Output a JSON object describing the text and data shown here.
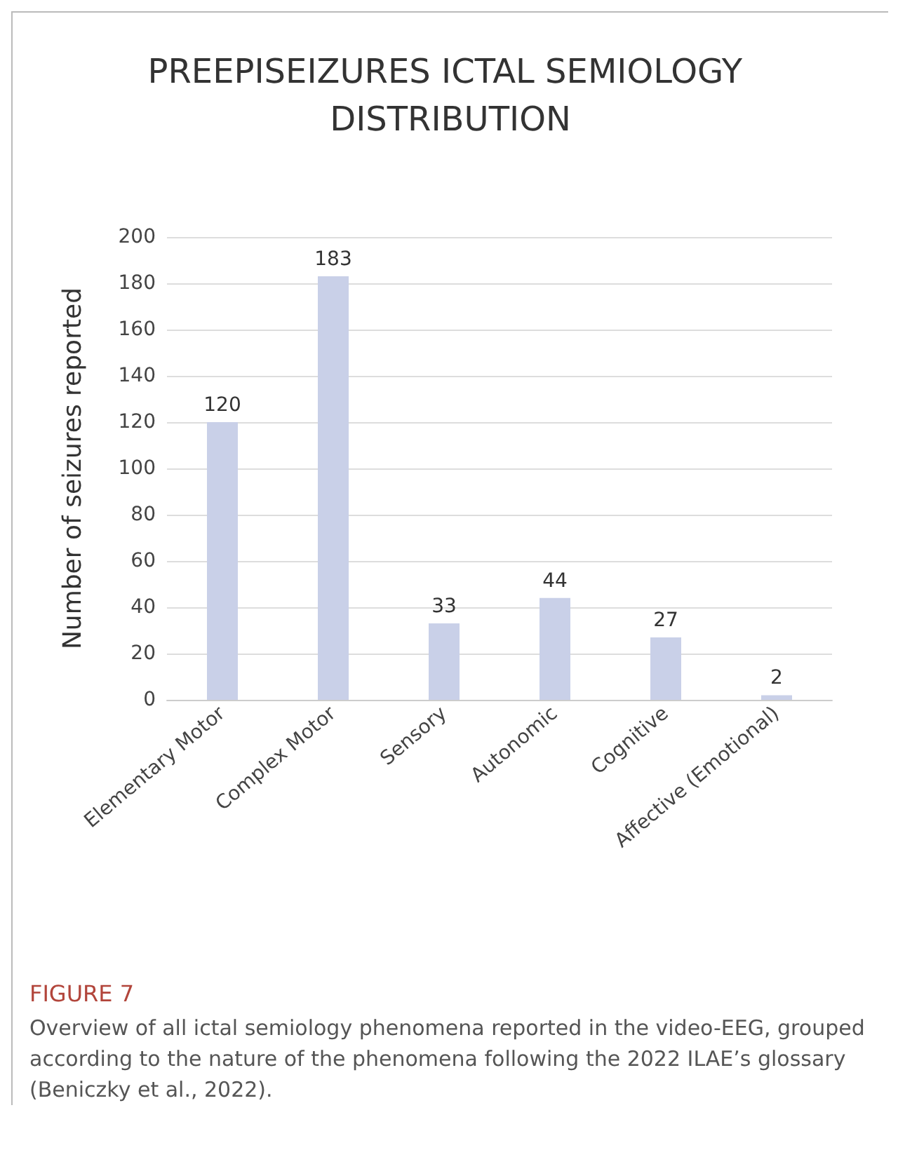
{
  "chart_data": {
    "type": "bar",
    "title": "PREEPISEIZURES ICTAL SEMIOLOGY DISTRIBUTION",
    "ylabel": "Number of seizures reported",
    "categories": [
      "Elementary Motor",
      "Complex Motor",
      "Sensory",
      "Autonomic",
      "Cognitive",
      "Affective (Emotional)"
    ],
    "values": [
      120,
      183,
      33,
      44,
      27,
      2
    ],
    "color": "#c9d0e8",
    "ylim": [
      0,
      200
    ],
    "yticks": [
      0,
      20,
      40,
      60,
      80,
      100,
      120,
      140,
      160,
      180,
      200
    ],
    "grid": "y",
    "data_labels": true,
    "annotations": [
      "FIGURE 7",
      "Overview of all ictal semiology phenomena reported in the video-EEG, grouped according to the nature of the phenomena following the 2022 ILAE’s glossary (Beniczky et al., 2022)."
    ]
  }
}
